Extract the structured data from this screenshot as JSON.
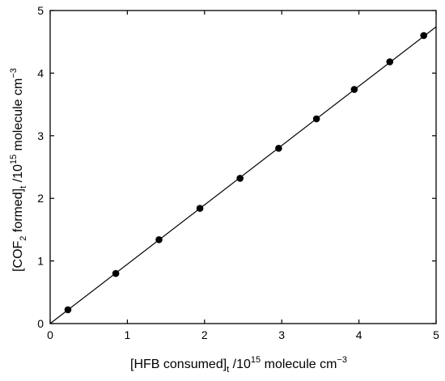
{
  "chart_data": {
    "type": "scatter",
    "xlim": [
      0,
      5
    ],
    "ylim": [
      0,
      5
    ],
    "x_ticks": [
      0,
      1,
      2,
      3,
      4,
      5
    ],
    "y_ticks": [
      0,
      1,
      2,
      3,
      4,
      5
    ],
    "x_tick_labels": [
      "0",
      "1",
      "2",
      "3",
      "4",
      "5"
    ],
    "y_tick_labels": [
      "0",
      "1",
      "2",
      "3",
      "4",
      "5"
    ],
    "xlabel": {
      "pre": "[HFB consumed]",
      "sub": "t",
      "mid": " /10",
      "sup": "15",
      "post": " molecule cm",
      "sup2": "−3"
    },
    "ylabel": {
      "pre": "[COF",
      "sub1": "2",
      "mid1": " formed]",
      "sub2": "t",
      "mid2": " /10",
      "sup": "15",
      "post": " molecule cm",
      "sup2": "−3"
    },
    "points": [
      {
        "x": 0.23,
        "y": 0.22
      },
      {
        "x": 0.85,
        "y": 0.8
      },
      {
        "x": 1.41,
        "y": 1.34
      },
      {
        "x": 1.94,
        "y": 1.84
      },
      {
        "x": 2.46,
        "y": 2.32
      },
      {
        "x": 2.96,
        "y": 2.8
      },
      {
        "x": 3.45,
        "y": 3.27
      },
      {
        "x": 3.94,
        "y": 3.74
      },
      {
        "x": 4.4,
        "y": 4.18
      },
      {
        "x": 4.84,
        "y": 4.6
      }
    ],
    "fit_line": {
      "x": [
        0,
        5
      ],
      "y": [
        0,
        4.74
      ]
    },
    "grid": false,
    "legend": "none",
    "colors": {
      "marker": "#000000",
      "line": "#000000"
    }
  }
}
